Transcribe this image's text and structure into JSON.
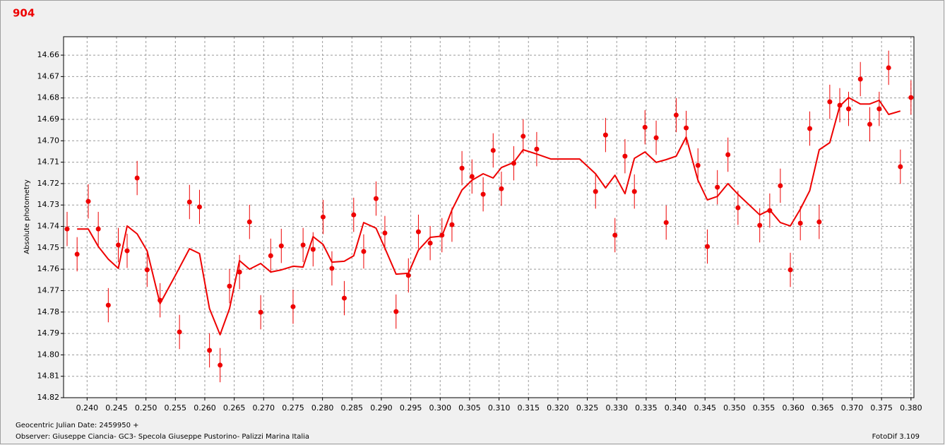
{
  "chart_data": {
    "type": "scatter",
    "title": "904",
    "y_label": "Absolute photometry",
    "x_label": "Geocentric Julian Date: 2459950 +",
    "observer": "Observer: Giuseppe Ciancia- GC3- Specola Giuseppe Pustorino- Palizzi Marina Italia",
    "software": "FotoDif 3.109",
    "xlim": [
      0.236,
      0.3805
    ],
    "ylim": [
      14.82,
      14.6514
    ],
    "grid": true,
    "xticks": [
      {
        "value": 0.24,
        "label": "0.240"
      },
      {
        "value": 0.245,
        "label": "0.245"
      },
      {
        "value": 0.25,
        "label": "0.250"
      },
      {
        "value": 0.255,
        "label": "0.255"
      },
      {
        "value": 0.26,
        "label": "0.260"
      },
      {
        "value": 0.265,
        "label": "0.265"
      },
      {
        "value": 0.27,
        "label": "0.270"
      },
      {
        "value": 0.275,
        "label": "0.275"
      },
      {
        "value": 0.28,
        "label": "0.280"
      },
      {
        "value": 0.285,
        "label": "0.285"
      },
      {
        "value": 0.29,
        "label": "0.290"
      },
      {
        "value": 0.295,
        "label": "0.295"
      },
      {
        "value": 0.3,
        "label": "0.300"
      },
      {
        "value": 0.305,
        "label": "0.305"
      },
      {
        "value": 0.31,
        "label": "0.310"
      },
      {
        "value": 0.315,
        "label": "0.315"
      },
      {
        "value": 0.32,
        "label": "0.320"
      },
      {
        "value": 0.325,
        "label": "0.325"
      },
      {
        "value": 0.33,
        "label": "0.330"
      },
      {
        "value": 0.335,
        "label": "0.335"
      },
      {
        "value": 0.34,
        "label": "0.340"
      },
      {
        "value": 0.345,
        "label": "0.345"
      },
      {
        "value": 0.35,
        "label": "0.350"
      },
      {
        "value": 0.355,
        "label": "0.355"
      },
      {
        "value": 0.36,
        "label": "0.360"
      },
      {
        "value": 0.365,
        "label": "0.365"
      },
      {
        "value": 0.37,
        "label": "0.370"
      },
      {
        "value": 0.375,
        "label": "0.375"
      },
      {
        "value": 0.38,
        "label": "0.380"
      }
    ],
    "yticks": [
      14.66,
      14.67,
      14.68,
      14.69,
      {
        "value": 14.7,
        "label": "14.70"
      },
      14.71,
      14.72,
      14.73,
      14.74,
      14.75,
      14.76,
      14.77,
      14.78,
      14.79,
      {
        "value": 14.8,
        "label": "14.80"
      },
      14.81,
      14.82
    ],
    "series": [
      {
        "type": "scatter",
        "color": "#ee0000",
        "yerr": 0.008,
        "x": [
          0.2366,
          0.2383,
          0.2402,
          0.2419,
          0.2436,
          0.2453,
          0.2468,
          0.2485,
          0.2502,
          0.2524,
          0.2557,
          0.2574,
          0.2591,
          0.2608,
          0.2626,
          0.2642,
          0.2659,
          0.2676,
          0.2695,
          0.2712,
          0.273,
          0.275,
          0.2767,
          0.2784,
          0.2801,
          0.2816,
          0.2837,
          0.2853,
          0.287,
          0.2891,
          0.2906,
          0.2925,
          0.2946,
          0.2963,
          0.2983,
          0.3003,
          0.302,
          0.3037,
          0.3054,
          0.3073,
          0.309,
          0.3104,
          0.3125,
          0.3141,
          0.3164,
          0.3264,
          0.3281,
          0.3297,
          0.3314,
          0.333,
          0.3348,
          0.3367,
          0.3384,
          0.3401,
          0.3418,
          0.3438,
          0.3454,
          0.3471,
          0.3489,
          0.3506,
          0.3543,
          0.356,
          0.3578,
          0.3595,
          0.3612,
          0.3628,
          0.3644,
          0.3662,
          0.3679,
          0.3694,
          0.3714,
          0.373,
          0.3746,
          0.3762,
          0.3782,
          0.38
        ],
        "values": [
          14.7412,
          14.753,
          14.7283,
          14.7412,
          14.7768,
          14.7487,
          14.7514,
          14.7174,
          14.7603,
          14.7745,
          14.7893,
          14.7286,
          14.7309,
          14.7979,
          14.8048,
          14.7679,
          14.7613,
          14.7379,
          14.7801,
          14.7537,
          14.7491,
          14.7775,
          14.7487,
          14.7507,
          14.7356,
          14.7596,
          14.7735,
          14.7346,
          14.7517,
          14.727,
          14.7431,
          14.7798,
          14.7629,
          14.7425,
          14.7478,
          14.7441,
          14.7392,
          14.7128,
          14.7167,
          14.725,
          14.7045,
          14.7224,
          14.7105,
          14.6979,
          14.7039,
          14.7237,
          14.6973,
          14.7441,
          14.7072,
          14.7237,
          14.6937,
          14.6986,
          14.7382,
          14.688,
          14.694,
          14.7115,
          14.7494,
          14.7217,
          14.7065,
          14.7313,
          14.7395,
          14.7326,
          14.721,
          14.7603,
          14.7385,
          14.6943,
          14.7379,
          14.6818,
          14.6834,
          14.6851,
          14.6712,
          14.6923,
          14.6851,
          14.6659,
          14.7121,
          14.6798
        ]
      },
      {
        "type": "line",
        "color": "#ee0000",
        "x": [
          0.2383,
          0.2402,
          0.2419,
          0.2436,
          0.2453,
          0.2468,
          0.2485,
          0.2502,
          0.2524,
          0.255,
          0.2574,
          0.2591,
          0.2608,
          0.2626,
          0.2642,
          0.2659,
          0.2676,
          0.2695,
          0.2712,
          0.273,
          0.275,
          0.2767,
          0.2784,
          0.2801,
          0.2816,
          0.2837,
          0.2853,
          0.287,
          0.2891,
          0.2906,
          0.2925,
          0.2946,
          0.2963,
          0.2983,
          0.3003,
          0.302,
          0.3037,
          0.3054,
          0.3073,
          0.309,
          0.3104,
          0.3125,
          0.3141,
          0.3164,
          0.3188,
          0.3237,
          0.3264,
          0.3281,
          0.3297,
          0.3314,
          0.333,
          0.3348,
          0.3367,
          0.3384,
          0.3401,
          0.3418,
          0.3438,
          0.3454,
          0.3471,
          0.3489,
          0.3506,
          0.3543,
          0.356,
          0.3578,
          0.3595,
          0.3612,
          0.3628,
          0.3644,
          0.3662,
          0.3679,
          0.3694,
          0.3714,
          0.373,
          0.3746,
          0.3762,
          0.3782
        ],
        "values": [
          14.7412,
          14.7412,
          14.7494,
          14.7553,
          14.7596,
          14.7398,
          14.7435,
          14.7514,
          14.7761,
          14.7629,
          14.7504,
          14.7527,
          14.7784,
          14.7906,
          14.7784,
          14.756,
          14.76,
          14.7573,
          14.7613,
          14.7603,
          14.7586,
          14.759,
          14.7448,
          14.7484,
          14.7567,
          14.7563,
          14.7537,
          14.7382,
          14.7408,
          14.7501,
          14.7623,
          14.7619,
          14.7511,
          14.7451,
          14.7445,
          14.7323,
          14.723,
          14.7184,
          14.7154,
          14.7174,
          14.7125,
          14.7101,
          14.7042,
          14.7062,
          14.7085,
          14.7085,
          14.7154,
          14.722,
          14.7161,
          14.7247,
          14.7082,
          14.7052,
          14.7101,
          14.7088,
          14.7072,
          14.6983,
          14.7184,
          14.7276,
          14.726,
          14.72,
          14.725,
          14.7346,
          14.7323,
          14.7382,
          14.7398,
          14.7319,
          14.7233,
          14.7042,
          14.7009,
          14.6838,
          14.6798,
          14.6828,
          14.6828,
          14.6811,
          14.6877,
          14.6861
        ]
      }
    ]
  }
}
